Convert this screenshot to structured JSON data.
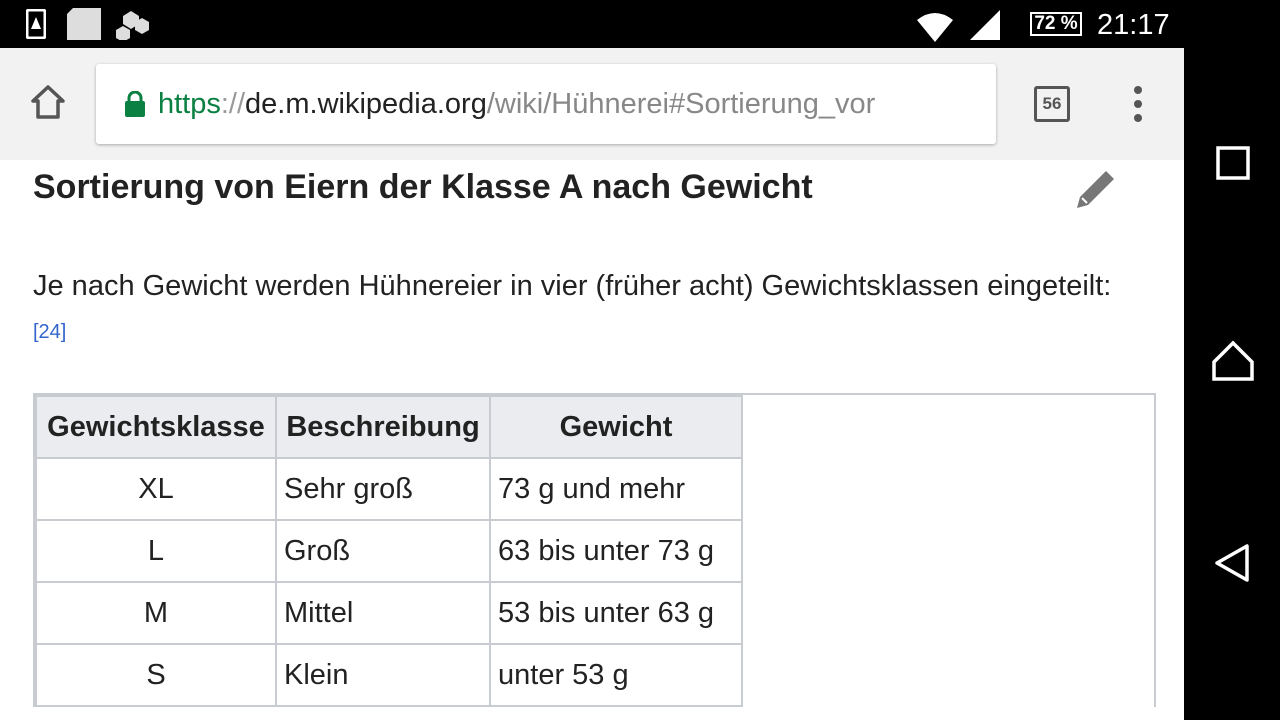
{
  "status_bar": {
    "battery": "72 %",
    "time": "21:17",
    "icons": [
      "sim-alert-icon",
      "sd-card-icon",
      "app-notification-icon",
      "wifi-icon",
      "signal-icon",
      "battery-icon"
    ]
  },
  "browser": {
    "url_scheme": "https",
    "url_sep": "://",
    "url_host": "de.m.wikipedia.org",
    "url_path": "/wiki/Hühnerei#Sortierung_vor",
    "tab_count": "56"
  },
  "article": {
    "heading": "Sortierung von Eiern der Klasse A nach Gewicht",
    "paragraph": "Je nach Gewicht werden Hühnereier in vier (früher acht) Gewichtsklassen eingeteilt:",
    "ref": "[24]",
    "table": {
      "headers": [
        "Gewichtsklasse",
        "Beschreibung",
        "Gewicht"
      ],
      "rows": [
        [
          "XL",
          "Sehr groß",
          "73 g und mehr"
        ],
        [
          "L",
          "Groß",
          "63 bis unter 73 g"
        ],
        [
          "M",
          "Mittel",
          "53 bis unter 63 g"
        ],
        [
          "S",
          "Klein",
          "unter 53 g"
        ]
      ]
    }
  }
}
